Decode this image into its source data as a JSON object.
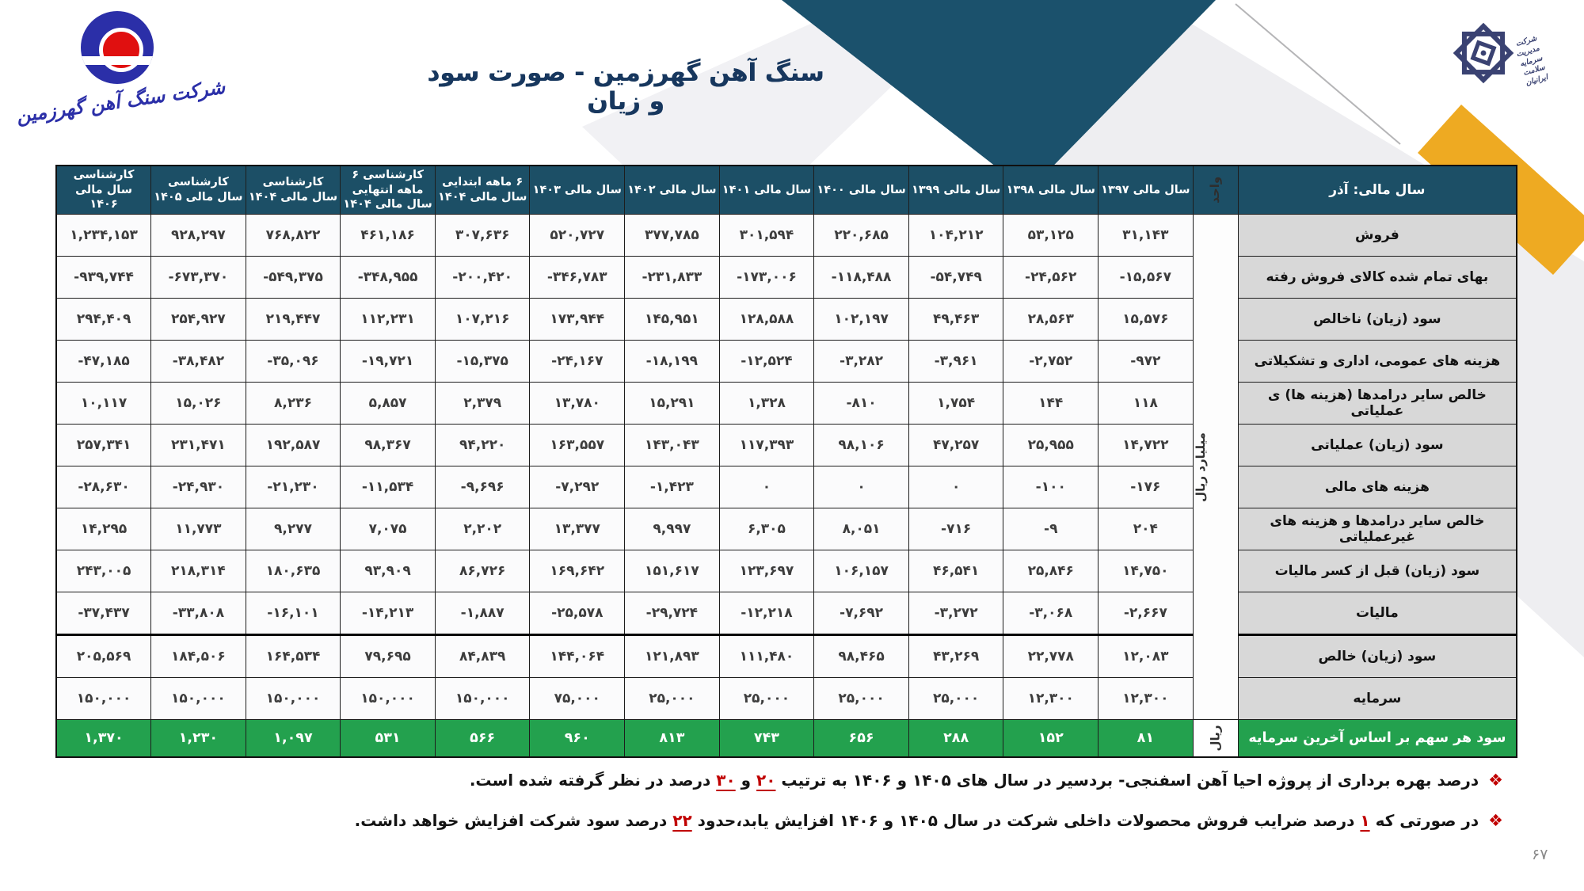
{
  "slide": {
    "title": "سنگ آهن گهرزمین - صورت سود و زیان",
    "page_number": "۶۷"
  },
  "logo_left": {
    "caption": "شرکت سنگ آهن گهرزمین"
  },
  "logo_right": {
    "line1": "شرکت",
    "line2": "مدیریت",
    "line3": "سرمایه",
    "line4": "سلامت",
    "line5": "ایرانیان"
  },
  "colors": {
    "header_navy": "#1C4F66",
    "band_navy": "#1B516C",
    "gold": "#EEAA22",
    "green": "#23A14E",
    "label_gray": "#D8D8D8",
    "red": "#C00000",
    "title_navy": "#17375E"
  },
  "table": {
    "corner_header": "سال مالی: آذر",
    "unit_header": "واحد",
    "unit_main": "میلیارد ریال",
    "unit_eps": "ریال",
    "year_headers": [
      "سال مالی ۱۳۹۷",
      "سال مالی ۱۳۹۸",
      "سال مالی ۱۳۹۹",
      "سال مالی ۱۴۰۰",
      "سال مالی ۱۴۰۱",
      "سال مالی ۱۴۰۲",
      "سال مالی ۱۴۰۳",
      "۶ ماهه ابتدایی سال مالی ۱۴۰۴",
      "کارشناسی ۶ ماهه انتهایی سال مالی ۱۴۰۴",
      "کارشناسی سال مالی ۱۴۰۴",
      "کارشناسی سال مالی ۱۴۰۵",
      "کارشناسی سال مالی ۱۴۰۶"
    ],
    "rows": [
      {
        "label": "فروش",
        "thick": false,
        "values": [
          "۳۱,۱۴۳",
          "۵۳,۱۲۵",
          "۱۰۴,۲۱۲",
          "۲۲۰,۶۸۵",
          "۳۰۱,۵۹۴",
          "۳۷۷,۷۸۵",
          "۵۲۰,۷۲۷",
          "۳۰۷,۶۳۶",
          "۴۶۱,۱۸۶",
          "۷۶۸,۸۲۲",
          "۹۲۸,۲۹۷",
          "۱,۲۳۴,۱۵۳"
        ]
      },
      {
        "label": "بهای تمام شده کالای فروش رفته",
        "thick": false,
        "values": [
          "-۱۵,۵۶۷",
          "-۲۴,۵۶۲",
          "-۵۴,۷۴۹",
          "-۱۱۸,۴۸۸",
          "-۱۷۳,۰۰۶",
          "-۲۳۱,۸۳۳",
          "-۳۴۶,۷۸۳",
          "-۲۰۰,۴۲۰",
          "-۳۴۸,۹۵۵",
          "-۵۴۹,۳۷۵",
          "-۶۷۳,۳۷۰",
          "-۹۳۹,۷۴۴"
        ]
      },
      {
        "label": "سود (زیان) ناخالص",
        "thick": false,
        "values": [
          "۱۵,۵۷۶",
          "۲۸,۵۶۳",
          "۴۹,۴۶۳",
          "۱۰۲,۱۹۷",
          "۱۲۸,۵۸۸",
          "۱۴۵,۹۵۱",
          "۱۷۳,۹۴۴",
          "۱۰۷,۲۱۶",
          "۱۱۲,۲۳۱",
          "۲۱۹,۴۴۷",
          "۲۵۴,۹۲۷",
          "۲۹۴,۴۰۹"
        ]
      },
      {
        "label": "هزینه های عمومی، اداری و تشکیلاتی",
        "thick": false,
        "values": [
          "-۹۷۲",
          "-۲,۷۵۲",
          "-۳,۹۶۱",
          "-۳,۲۸۲",
          "-۱۲,۵۲۴",
          "-۱۸,۱۹۹",
          "-۲۴,۱۶۷",
          "-۱۵,۳۷۵",
          "-۱۹,۷۲۱",
          "-۳۵,۰۹۶",
          "-۳۸,۴۸۲",
          "-۴۷,۱۸۵"
        ]
      },
      {
        "label": "خالص سایر درامدها (هزینه ها) ی عملیاتی",
        "thick": false,
        "values": [
          "۱۱۸",
          "۱۴۴",
          "۱,۷۵۴",
          "-۸۱۰",
          "۱,۳۲۸",
          "۱۵,۲۹۱",
          "۱۳,۷۸۰",
          "۲,۳۷۹",
          "۵,۸۵۷",
          "۸,۲۳۶",
          "۱۵,۰۲۶",
          "۱۰,۱۱۷"
        ]
      },
      {
        "label": "سود (زیان) عملیاتی",
        "thick": false,
        "values": [
          "۱۴,۷۲۲",
          "۲۵,۹۵۵",
          "۴۷,۲۵۷",
          "۹۸,۱۰۶",
          "۱۱۷,۳۹۳",
          "۱۴۳,۰۴۳",
          "۱۶۳,۵۵۷",
          "۹۴,۲۲۰",
          "۹۸,۳۶۷",
          "۱۹۲,۵۸۷",
          "۲۳۱,۴۷۱",
          "۲۵۷,۳۴۱"
        ]
      },
      {
        "label": "هزینه های مالی",
        "thick": false,
        "values": [
          "-۱۷۶",
          "-۱۰۰",
          "۰",
          "۰",
          "۰",
          "-۱,۴۲۳",
          "-۷,۲۹۲",
          "-۹,۶۹۶",
          "-۱۱,۵۳۴",
          "-۲۱,۲۳۰",
          "-۲۴,۹۳۰",
          "-۲۸,۶۳۰"
        ]
      },
      {
        "label": "خالص سایر درامدها و هزینه های غیرعملیاتی",
        "thick": false,
        "values": [
          "۲۰۴",
          "-۹",
          "-۷۱۶",
          "۸,۰۵۱",
          "۶,۳۰۵",
          "۹,۹۹۷",
          "۱۳,۳۷۷",
          "۲,۲۰۲",
          "۷,۰۷۵",
          "۹,۲۷۷",
          "۱۱,۷۷۳",
          "۱۴,۲۹۵"
        ]
      },
      {
        "label": "سود (زیان) قبل از کسر مالیات",
        "thick": false,
        "values": [
          "۱۴,۷۵۰",
          "۲۵,۸۴۶",
          "۴۶,۵۴۱",
          "۱۰۶,۱۵۷",
          "۱۲۳,۶۹۷",
          "۱۵۱,۶۱۷",
          "۱۶۹,۶۴۲",
          "۸۶,۷۲۶",
          "۹۳,۹۰۹",
          "۱۸۰,۶۳۵",
          "۲۱۸,۳۱۴",
          "۲۴۳,۰۰۵"
        ]
      },
      {
        "label": "مالیات",
        "thick": false,
        "values": [
          "-۲,۶۶۷",
          "-۳,۰۶۸",
          "-۳,۲۷۲",
          "-۷,۶۹۲",
          "-۱۲,۲۱۸",
          "-۲۹,۷۲۴",
          "-۲۵,۵۷۸",
          "-۱,۸۸۷",
          "-۱۴,۲۱۳",
          "-۱۶,۱۰۱",
          "-۳۳,۸۰۸",
          "-۳۷,۴۳۷"
        ]
      },
      {
        "label": "سود (زیان) خالص",
        "thick": true,
        "values": [
          "۱۲,۰۸۳",
          "۲۲,۷۷۸",
          "۴۳,۲۶۹",
          "۹۸,۴۶۵",
          "۱۱۱,۴۸۰",
          "۱۲۱,۸۹۳",
          "۱۴۴,۰۶۴",
          "۸۴,۸۳۹",
          "۷۹,۶۹۵",
          "۱۶۴,۵۳۴",
          "۱۸۴,۵۰۶",
          "۲۰۵,۵۶۹"
        ]
      },
      {
        "label": "سرمایه",
        "thick": false,
        "values": [
          "۱۲,۳۰۰",
          "۱۲,۳۰۰",
          "۲۵,۰۰۰",
          "۲۵,۰۰۰",
          "۲۵,۰۰۰",
          "۲۵,۰۰۰",
          "۷۵,۰۰۰",
          "۱۵۰,۰۰۰",
          "۱۵۰,۰۰۰",
          "۱۵۰,۰۰۰",
          "۱۵۰,۰۰۰",
          "۱۵۰,۰۰۰"
        ]
      }
    ],
    "eps_row": {
      "label": "سود هر سهم بر اساس آخرین سرمایه",
      "values": [
        "۸۱",
        "۱۵۲",
        "۲۸۸",
        "۶۵۶",
        "۷۴۳",
        "۸۱۳",
        "۹۶۰",
        "۵۶۶",
        "۵۳۱",
        "۱,۰۹۷",
        "۱,۲۳۰",
        "۱,۳۷۰"
      ]
    }
  },
  "notes": {
    "n1": {
      "t1": "درصد بهره برداری از پروژه احیا آهن اسفنجی- بردسیر در سال های ۱۴۰۵ و ۱۴۰۶ به ترتیب ",
      "h1": "۲۰",
      "t2": " و ",
      "h2": "۳۰",
      "t3": " درصد در نظر گرفته شده است."
    },
    "n2": {
      "t1": "در صورتی که ",
      "h1": "۱",
      "t2": " درصد ضرایب فروش محصولات داخلی شرکت در سال ۱۴۰۵ و ۱۴۰۶ افزایش یابد،حدود ",
      "h2": "۲۲",
      "t3": " درصد سود شرکت افزایش خواهد داشت."
    }
  }
}
